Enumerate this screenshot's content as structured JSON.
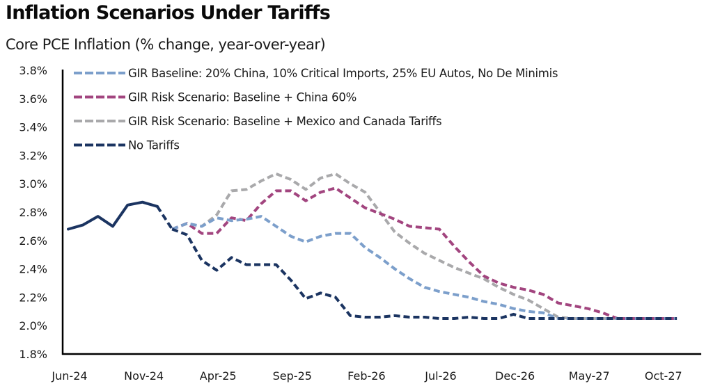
{
  "title": "Inflation Scenarios Under Tariffs",
  "subtitle": "Core PCE Inflation (% change, year-over-year)",
  "chart_data": {
    "type": "line",
    "title": "Inflation Scenarios Under Tariffs",
    "subtitle": "Core PCE Inflation (% change, year-over-year)",
    "xlabel": "",
    "ylabel": "",
    "ylim": [
      1.8,
      3.8
    ],
    "yticks": [
      1.8,
      2.0,
      2.2,
      2.4,
      2.6,
      2.8,
      3.0,
      3.2,
      3.4,
      3.6,
      3.8
    ],
    "ytick_labels": [
      "1.8%",
      "2.0%",
      "2.2%",
      "2.4%",
      "2.6%",
      "2.8%",
      "3.0%",
      "3.2%",
      "3.4%",
      "3.6%",
      "3.8%"
    ],
    "xtick_labels": [
      "Jun-24",
      "Nov-24",
      "Apr-25",
      "Sep-25",
      "Feb-26",
      "Jul-26",
      "Dec-26",
      "May-27",
      "Oct-27"
    ],
    "x_start": "Jun-24",
    "x_end": "Nov-27",
    "x_frequency": "monthly",
    "grid": false,
    "legend_position": "top-left",
    "history": {
      "name": "Actual",
      "color": "#1b3461",
      "style": "solid",
      "start": "Jun-24",
      "values": [
        2.68,
        2.71,
        2.77,
        2.7,
        2.85,
        2.87,
        2.84,
        2.68
      ]
    },
    "series": [
      {
        "name": "GIR Baseline: 20% China, 10% Critical Imports, 25% EU Autos, No De Minimis",
        "color": "#7c9fcb",
        "style": "dashed",
        "start": "Jan-25",
        "values": [
          2.68,
          2.72,
          2.7,
          2.76,
          2.74,
          2.75,
          2.77,
          2.7,
          2.63,
          2.59,
          2.63,
          2.65,
          2.65,
          2.55,
          2.48,
          2.4,
          2.33,
          2.27,
          2.24,
          2.22,
          2.2,
          2.17,
          2.15,
          2.12,
          2.1,
          2.09,
          2.05,
          2.05,
          2.05,
          2.05,
          2.05,
          2.05,
          2.05,
          2.05,
          2.05
        ]
      },
      {
        "name": "GIR Risk Scenario: Baseline + China 60%",
        "color": "#a2457f",
        "style": "dashed",
        "start": "Jan-25",
        "values": [
          2.68,
          2.72,
          2.65,
          2.65,
          2.76,
          2.74,
          2.86,
          2.95,
          2.95,
          2.88,
          2.94,
          2.97,
          2.9,
          2.83,
          2.79,
          2.75,
          2.7,
          2.69,
          2.68,
          2.56,
          2.45,
          2.35,
          2.3,
          2.27,
          2.25,
          2.22,
          2.16,
          2.14,
          2.12,
          2.09,
          2.05,
          2.05,
          2.05,
          2.05,
          2.05
        ]
      },
      {
        "name": "GIR Risk Scenario: Baseline + Mexico and Canada Tariffs",
        "color": "#a9a9ab",
        "style": "dashed",
        "start": "Jan-25",
        "values": [
          2.68,
          2.72,
          2.7,
          2.78,
          2.95,
          2.96,
          3.02,
          3.07,
          3.03,
          2.96,
          3.04,
          3.07,
          3.0,
          2.94,
          2.8,
          2.66,
          2.58,
          2.51,
          2.46,
          2.41,
          2.37,
          2.33,
          2.27,
          2.22,
          2.18,
          2.12,
          2.06,
          2.05,
          2.05,
          2.05,
          2.05,
          2.05,
          2.05,
          2.05,
          2.05
        ]
      },
      {
        "name": "No Tariffs",
        "color": "#1b3461",
        "style": "dashed",
        "start": "Jan-25",
        "values": [
          2.68,
          2.64,
          2.46,
          2.39,
          2.48,
          2.43,
          2.43,
          2.43,
          2.32,
          2.19,
          2.23,
          2.2,
          2.07,
          2.06,
          2.06,
          2.07,
          2.06,
          2.06,
          2.05,
          2.05,
          2.06,
          2.05,
          2.05,
          2.08,
          2.05,
          2.05,
          2.05,
          2.05,
          2.05,
          2.05,
          2.05,
          2.05,
          2.05,
          2.05,
          2.05
        ]
      }
    ]
  }
}
